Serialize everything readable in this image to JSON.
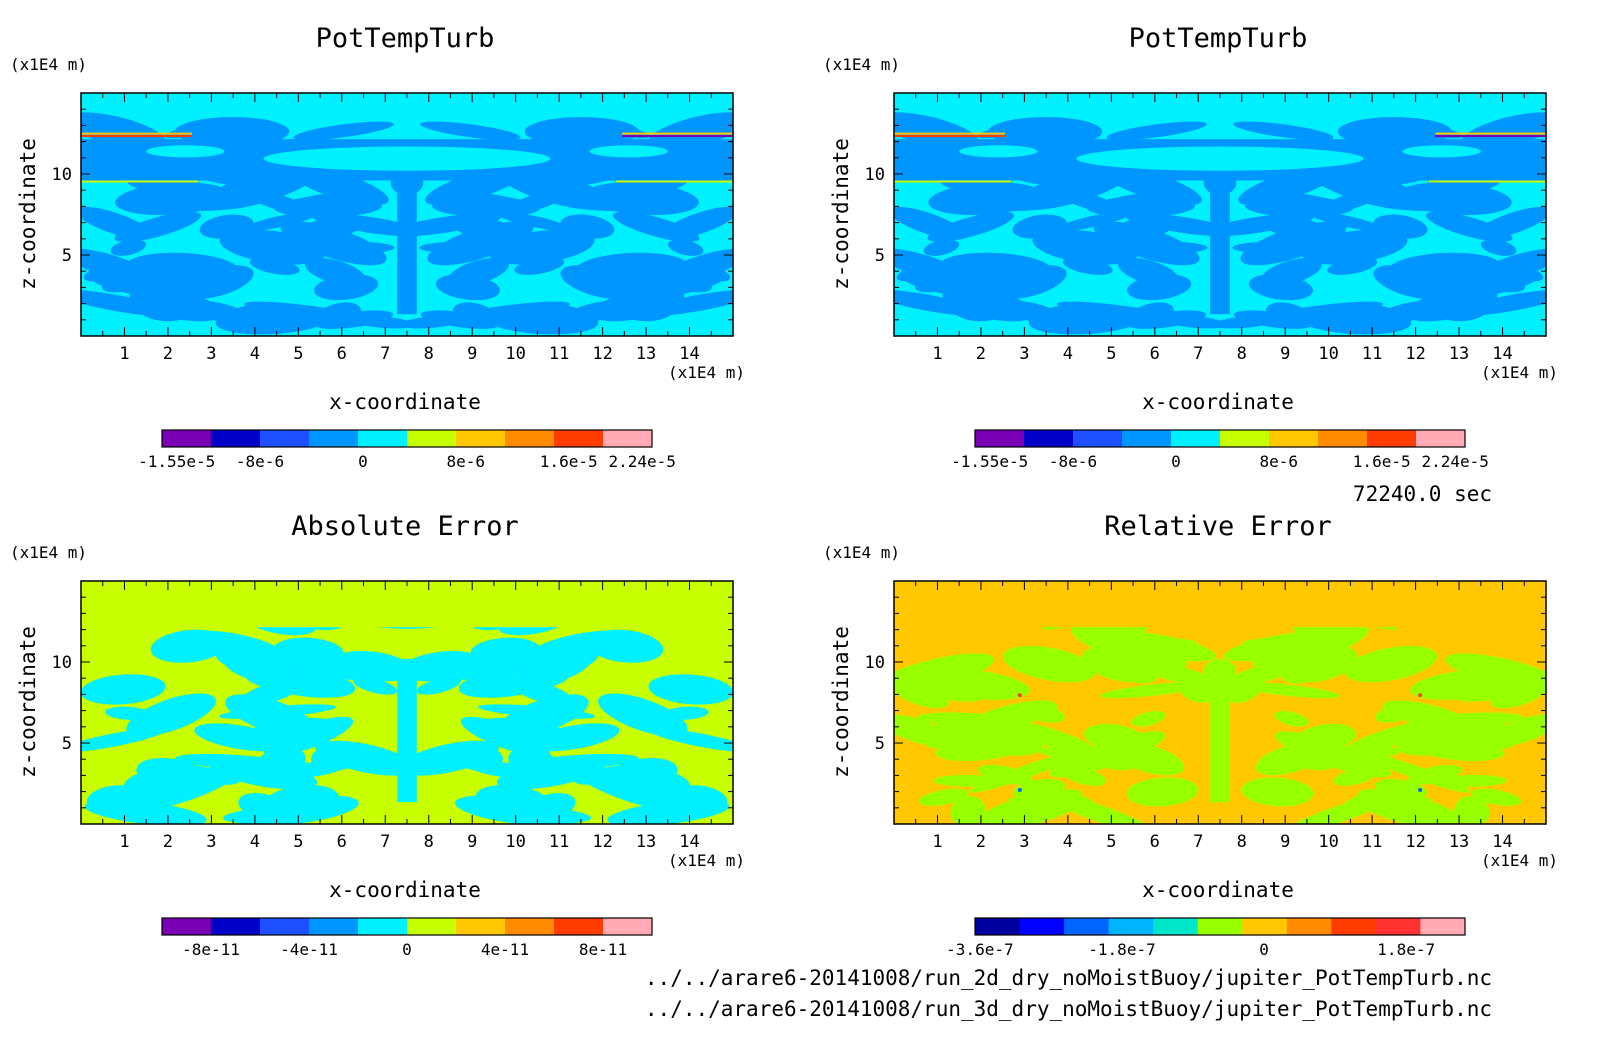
{
  "chart_data": [
    {
      "type": "heatmap",
      "title": "PotTempTurb",
      "xlabel": "x-coordinate",
      "ylabel": "z-coordinate",
      "x_unit": "(x1E4 m)",
      "y_unit": "(x1E4 m)",
      "xlim": [
        0,
        15
      ],
      "ylim": [
        0,
        15
      ],
      "x_ticks": [
        1,
        2,
        3,
        4,
        5,
        6,
        7,
        8,
        9,
        10,
        11,
        12,
        13,
        14
      ],
      "y_ticks": [
        5,
        10
      ],
      "colorbar_labels": [
        "-1.55e-5",
        "-8e-6",
        "0",
        "8e-6",
        "1.6e-5",
        "2.24e-5"
      ],
      "colorbar_colors": [
        "#7a00b4",
        "#0000c8",
        "#1e50ff",
        "#0096ff",
        "#00f0ff",
        "#c8ff00",
        "#ffc800",
        "#ff8c00",
        "#ff3c00",
        "#ffaab4"
      ],
      "background": "#00f0ff",
      "foreground": "#0096ff"
    },
    {
      "type": "heatmap",
      "title": "PotTempTurb",
      "xlabel": "x-coordinate",
      "ylabel": "z-coordinate",
      "x_unit": "(x1E4 m)",
      "y_unit": "(x1E4 m)",
      "xlim": [
        0,
        15
      ],
      "ylim": [
        0,
        15
      ],
      "x_ticks": [
        1,
        2,
        3,
        4,
        5,
        6,
        7,
        8,
        9,
        10,
        11,
        12,
        13,
        14
      ],
      "y_ticks": [
        5,
        10
      ],
      "colorbar_labels": [
        "-1.55e-5",
        "-8e-6",
        "0",
        "8e-6",
        "1.6e-5",
        "2.24e-5"
      ],
      "colorbar_colors": [
        "#7a00b4",
        "#0000c8",
        "#1e50ff",
        "#0096ff",
        "#00f0ff",
        "#c8ff00",
        "#ffc800",
        "#ff8c00",
        "#ff3c00",
        "#ffaab4"
      ],
      "background": "#00f0ff",
      "foreground": "#0096ff"
    },
    {
      "type": "heatmap",
      "title": "Absolute Error",
      "xlabel": "x-coordinate",
      "ylabel": "z-coordinate",
      "x_unit": "(x1E4 m)",
      "y_unit": "(x1E4 m)",
      "xlim": [
        0,
        15
      ],
      "ylim": [
        0,
        15
      ],
      "x_ticks": [
        1,
        2,
        3,
        4,
        5,
        6,
        7,
        8,
        9,
        10,
        11,
        12,
        13,
        14
      ],
      "y_ticks": [
        5,
        10
      ],
      "colorbar_labels": [
        "-8e-11",
        "-4e-11",
        "0",
        "4e-11",
        "8e-11"
      ],
      "colorbar_colors": [
        "#7a00b4",
        "#0000c8",
        "#1e50ff",
        "#0096ff",
        "#00f0ff",
        "#c8ff00",
        "#ffc800",
        "#ff8c00",
        "#ff3c00",
        "#ffaab4"
      ],
      "background": "#c8ff00",
      "foreground": "#00f0ff"
    },
    {
      "type": "heatmap",
      "title": "Relative Error",
      "xlabel": "x-coordinate",
      "ylabel": "z-coordinate",
      "x_unit": "(x1E4 m)",
      "y_unit": "(x1E4 m)",
      "xlim": [
        0,
        15
      ],
      "ylim": [
        0,
        15
      ],
      "x_ticks": [
        1,
        2,
        3,
        4,
        5,
        6,
        7,
        8,
        9,
        10,
        11,
        12,
        13,
        14
      ],
      "y_ticks": [
        5,
        10
      ],
      "colorbar_labels": [
        "-3.6e-7",
        "-1.8e-7",
        "0",
        "1.8e-7"
      ],
      "colorbar_colors": [
        "#0000a0",
        "#0000ff",
        "#0064ff",
        "#00b4ff",
        "#00e6c8",
        "#96ff00",
        "#ffc800",
        "#ff8c00",
        "#ff3c00",
        "#ff3232",
        "#ffaab4"
      ],
      "background": "#ffc800",
      "foreground": "#96ff00"
    }
  ],
  "timestamp": "72240.0 sec",
  "footer": {
    "file1": "../../arare6-20141008/run_2d_dry_noMoistBuoy/jupiter_PotTempTurb.nc",
    "file2": "../../arare6-20141008/run_3d_dry_noMoistBuoy/jupiter_PotTempTurb.nc"
  }
}
